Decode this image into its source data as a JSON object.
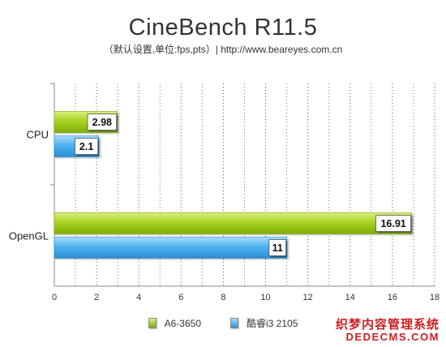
{
  "chart_data": {
    "type": "bar",
    "orientation": "horizontal",
    "title": "CineBench R11.5",
    "subtitle": "（默认设置,单位:fps,pts）| http://www.beareyes.com.cn",
    "categories": [
      "CPU",
      "OpenGL"
    ],
    "series": [
      {
        "name": "A6-3650",
        "values": [
          2.98,
          16.91
        ],
        "color": "#9ac811"
      },
      {
        "name": "酷睿i3 2105",
        "values": [
          2.1,
          11
        ],
        "color": "#3fa7ea"
      }
    ],
    "data_labels": [
      [
        "2.98",
        "16.91"
      ],
      [
        "2.1",
        "11"
      ]
    ],
    "xlim": [
      0,
      18
    ],
    "x_ticks": [
      "0",
      "2",
      "4",
      "6",
      "8",
      "10",
      "12",
      "14",
      "16",
      "18"
    ],
    "grid": "vertical dotted",
    "legend_position": "bottom"
  },
  "watermark": {
    "line1": "织梦内容管理系统",
    "line2": "DEDECMS.COM"
  }
}
